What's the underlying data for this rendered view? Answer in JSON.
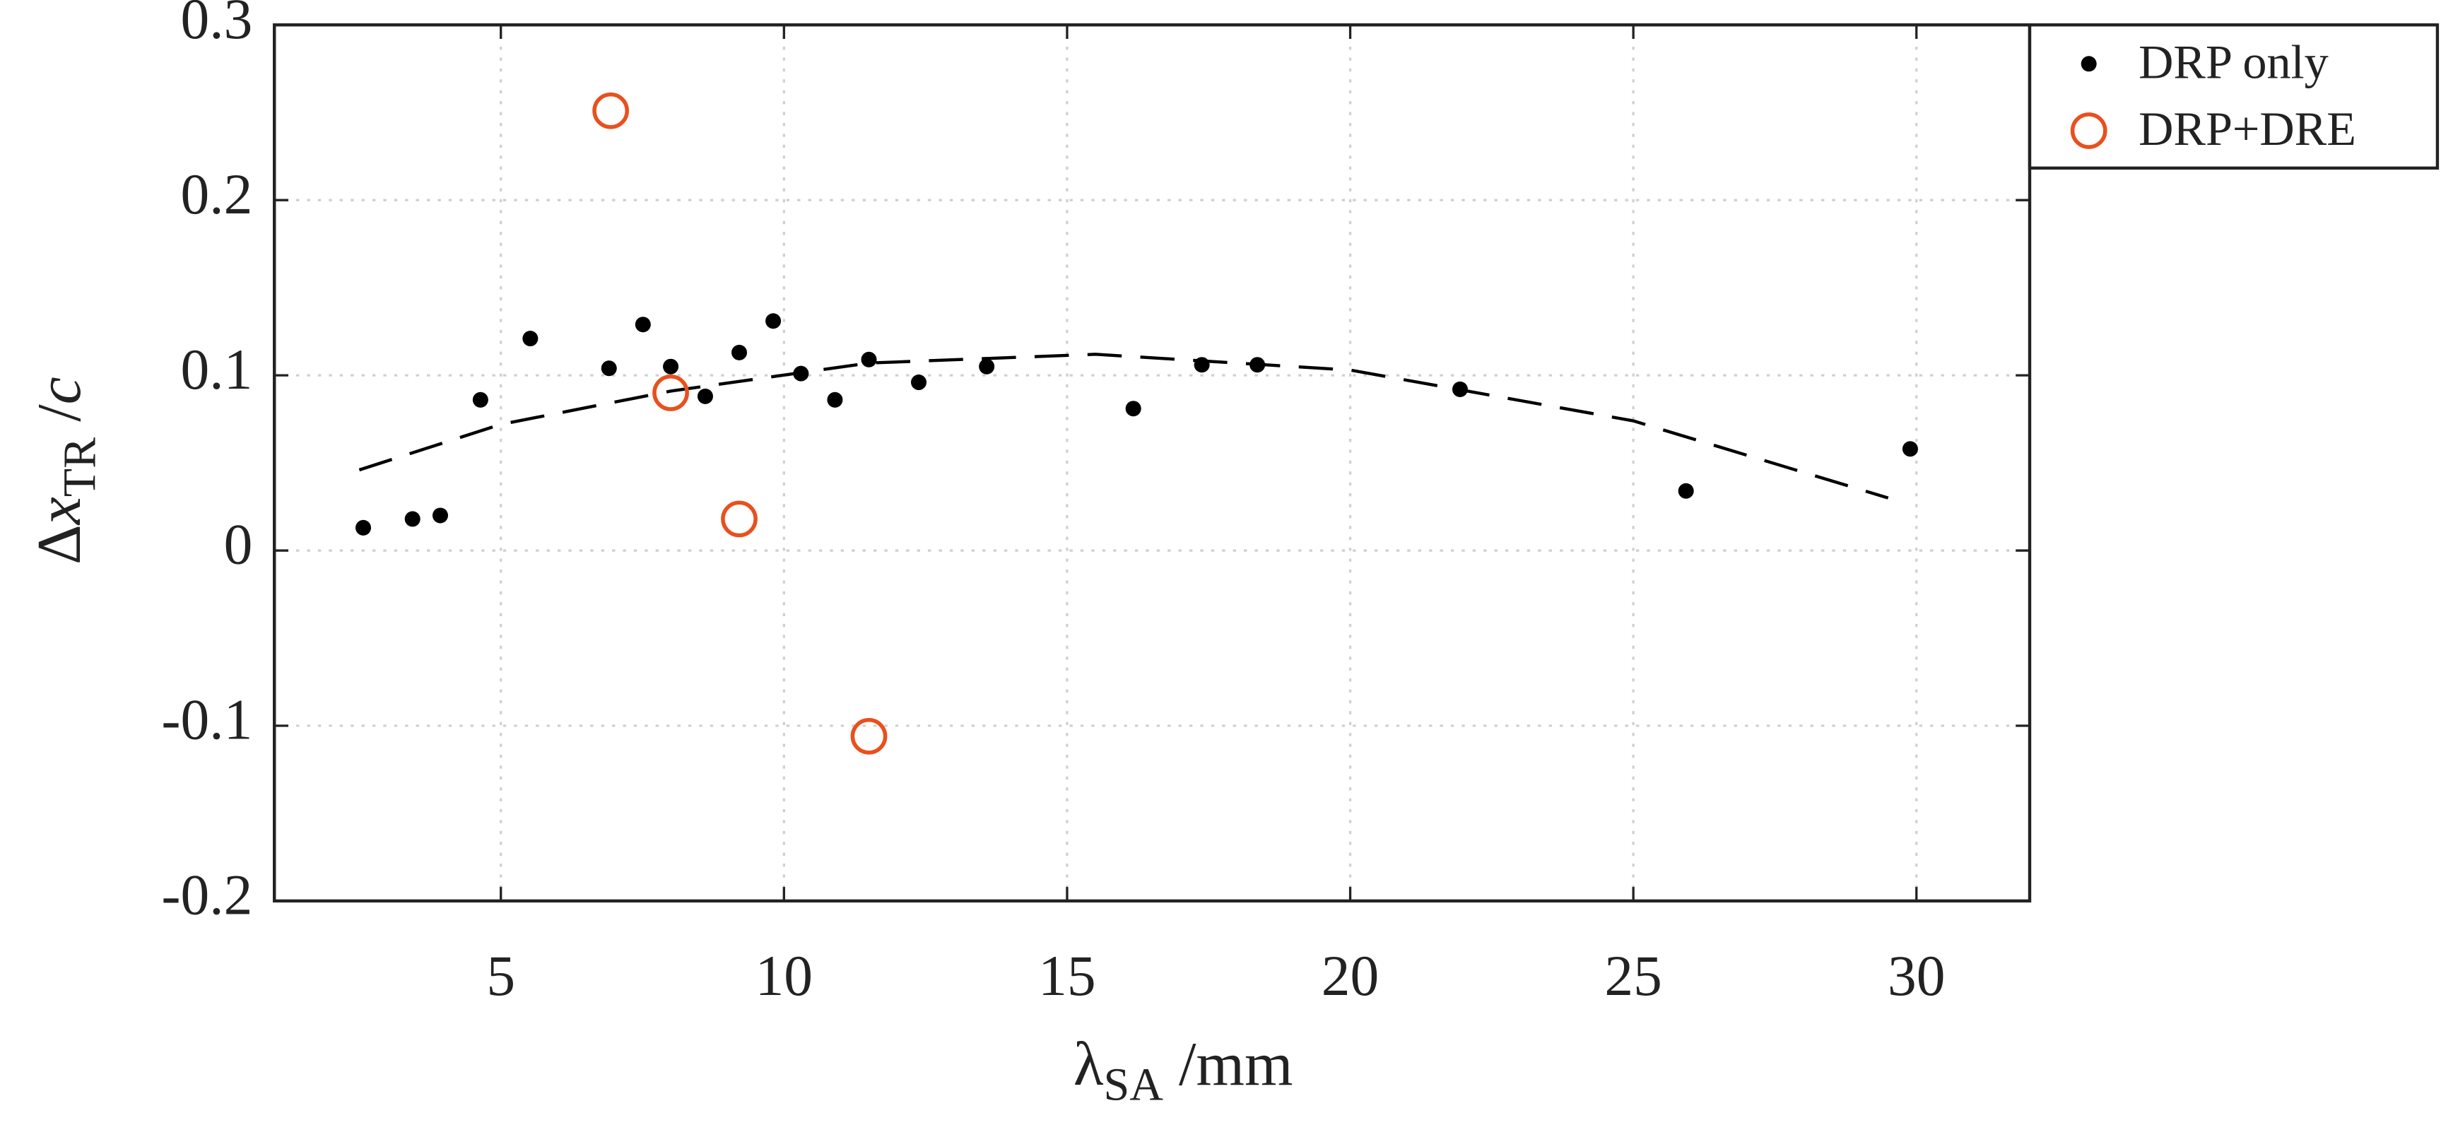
{
  "chart_data": {
    "type": "scatter",
    "xlabel": [
      "λ",
      "SA",
      " /mm"
    ],
    "ylabel": [
      "Δ",
      "x",
      "TR",
      " /",
      "c"
    ],
    "xlim": [
      1,
      32
    ],
    "ylim": [
      -0.2,
      0.3
    ],
    "xticks": [
      5,
      10,
      15,
      20,
      25,
      30
    ],
    "yticks": [
      -0.2,
      -0.1,
      0,
      0.1,
      0.2,
      0.3
    ],
    "grid": true,
    "legend": "outside-right",
    "series": [
      {
        "name": "DRP only",
        "color": "#000000",
        "marker": "dot",
        "x": [
          2.57,
          3.44,
          3.93,
          4.64,
          5.52,
          6.91,
          7.51,
          8.0,
          8.61,
          9.21,
          9.81,
          10.3,
          10.9,
          11.5,
          12.38,
          13.58,
          16.17,
          17.38,
          18.36,
          21.94,
          25.93,
          29.89
        ],
        "values": [
          0.013,
          0.018,
          0.02,
          0.086,
          0.121,
          0.104,
          0.129,
          0.105,
          0.088,
          0.113,
          0.131,
          0.101,
          0.086,
          0.109,
          0.096,
          0.105,
          0.081,
          0.106,
          0.106,
          0.092,
          0.034,
          0.058
        ]
      },
      {
        "name": "DRP+DRE",
        "color": "#e8501e",
        "marker": "ring",
        "x": [
          6.94,
          8.0,
          9.21,
          11.5
        ],
        "values": [
          0.251,
          0.09,
          0.018,
          -0.106
        ]
      },
      {
        "color": "#000000",
        "marker": "dashed-line",
        "x": [
          2.5,
          5,
          8,
          11.5,
          15.5,
          20,
          25,
          29.5
        ],
        "values": [
          0.046,
          0.072,
          0.091,
          0.107,
          0.112,
          0.103,
          0.074,
          0.03
        ]
      }
    ]
  }
}
